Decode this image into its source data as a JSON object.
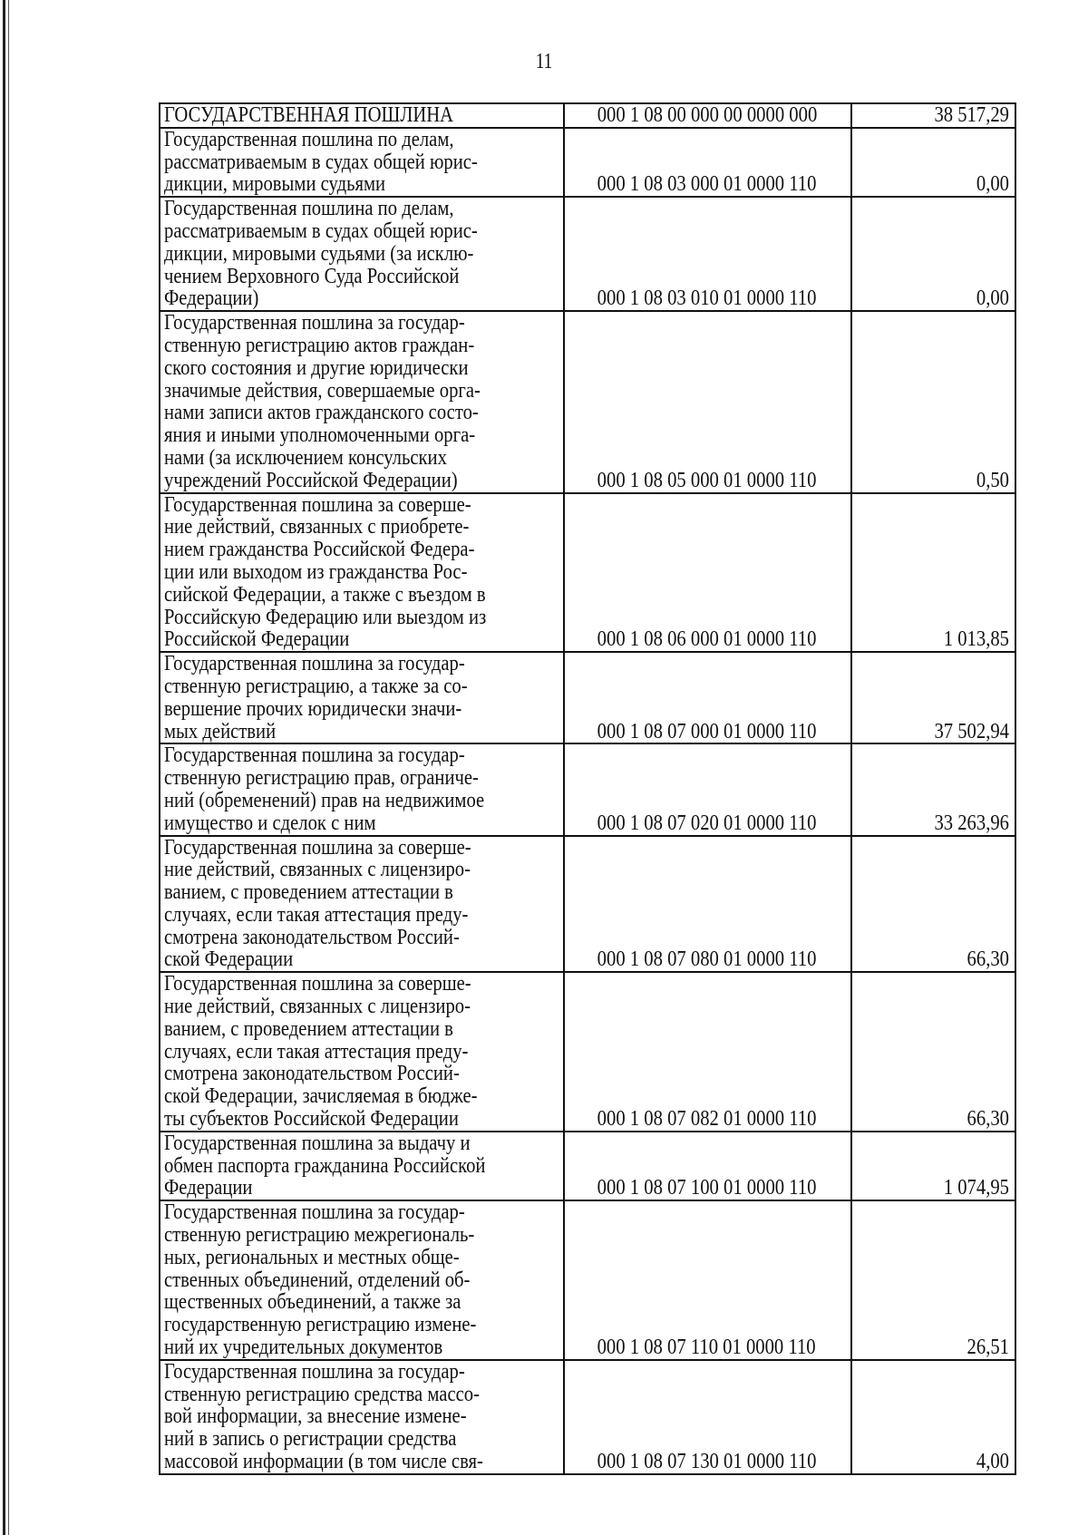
{
  "page_number": "11",
  "rows": [
    {
      "name": "ГОСУДАРСТВЕННАЯ ПОШЛИНА",
      "code": "000 1 08 00 000 00 0000 000",
      "value": "38 517,29"
    },
    {
      "name": "Государственная пошлина по делам,\nрассматриваемым в судах общей юрис-\nдикции, мировыми судьями",
      "code": "000 1 08 03 000 01 0000 110",
      "value": "0,00"
    },
    {
      "name": "Государственная пошлина по делам,\nрассматриваемым в судах общей юрис-\nдикции, мировыми судьями (за исклю-\nчением Верховного Суда Российской\nФедерации)",
      "code": "000 1 08 03 010 01 0000 110",
      "value": "0,00"
    },
    {
      "name": "Государственная пошлина за государ-\nственную регистрацию актов граждан-\nского состояния и другие юридически\nзначимые действия, совершаемые орга-\nнами записи актов гражданского состо-\nяния и иными уполномоченными орга-\nнами (за исключением консульских\nучреждений Российской Федерации)",
      "code": "000 1 08 05 000 01 0000 110",
      "value": "0,50"
    },
    {
      "name": "Государственная пошлина за соверше-\nние действий, связанных с приобрете-\nнием гражданства Российской Федера-\nции или выходом из гражданства Рос-\nсийской Федерации, а также с въездом в\nРоссийскую Федерацию или выездом из\nРоссийской Федерации",
      "code": "000 1 08 06 000 01 0000 110",
      "value": "1 013,85"
    },
    {
      "name": "Государственная пошлина за государ-\nственную регистрацию, а также за со-\nвершение прочих юридически значи-\nмых действий",
      "code": "000 1 08 07 000 01 0000 110",
      "value": "37 502,94"
    },
    {
      "name": "Государственная пошлина за государ-\nственную регистрацию прав, ограниче-\nний (обременений) прав на недвижимое\nимущество и сделок с ним",
      "code": "000 1 08 07 020 01 0000 110",
      "value": "33 263,96"
    },
    {
      "name": "Государственная пошлина за соверше-\nние действий, связанных с лицензиро-\nванием, с проведением аттестации в\nслучаях, если такая аттестация преду-\nсмотрена законодательством Россий-\nской Федерации",
      "code": "000 1 08 07 080 01 0000 110",
      "value": "66,30"
    },
    {
      "name": "Государственная пошлина за соверше-\nние действий, связанных с лицензиро-\nванием, с проведением аттестации в\nслучаях, если такая аттестация преду-\nсмотрена законодательством Россий-\nской Федерации, зачисляемая в бюдже-\nты субъектов Российской Федерации",
      "code": "000 1 08 07 082 01 0000 110",
      "value": "66,30"
    },
    {
      "name": "Государственная пошлина за выдачу и\nобмен паспорта гражданина Российской\nФедерации",
      "code": "000 1 08 07 100 01 0000 110",
      "value": "1 074,95"
    },
    {
      "name": "Государственная пошлина за государ-\nственную регистрацию межрегиональ-\nных, региональных и местных обще-\nственных объединений, отделений об-\nщественных объединений, а также за\nгосударственную регистрацию измене-\nний их учредительных документов",
      "code": "000 1 08 07 110 01 0000 110",
      "value": "26,51"
    },
    {
      "name": "Государственная пошлина за государ-\nственную регистрацию средства массо-\nвой информации, за внесение измене-\nний в запись о регистрации средства\nмассовой информации (в том числе свя-",
      "code": "000 1 08 07 130 01 0000 110",
      "value": "4,00"
    }
  ]
}
